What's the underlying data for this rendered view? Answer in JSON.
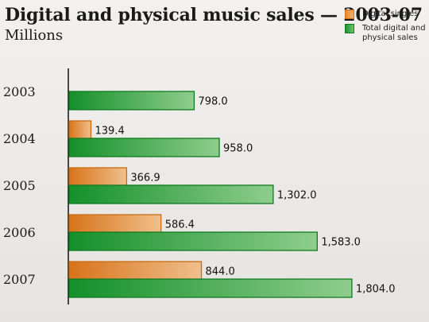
{
  "chart_data": {
    "type": "bar",
    "orientation": "horizontal",
    "title": "Digital and physical music sales — 2003-07",
    "subtitle": "Millions",
    "categories": [
      "2003",
      "2004",
      "2005",
      "2006",
      "2007"
    ],
    "series": [
      {
        "name": "Digital singles",
        "color": "#e07f1e",
        "values": [
          null,
          139.4,
          366.9,
          586.4,
          844.0
        ],
        "labels": [
          null,
          "139.4",
          "366.9",
          "586.4",
          "844.0"
        ]
      },
      {
        "name": "Total digital and physical sales",
        "color": "#1e9a2a",
        "values": [
          798.0,
          958.0,
          1302.0,
          1583.0,
          1804.0
        ],
        "labels": [
          "798.0",
          "958.0",
          "1,302.0",
          "1,583.0",
          "1,804.0"
        ]
      }
    ],
    "xlim": [
      0,
      2000
    ],
    "grid": false,
    "legend_position": "top-right"
  }
}
